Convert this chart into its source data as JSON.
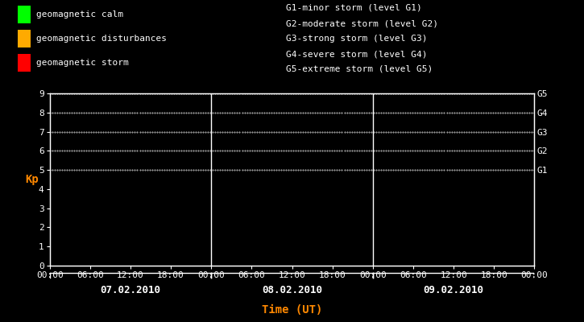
{
  "bg_color": "#000000",
  "plot_bg_color": "#000000",
  "axis_color": "#ffffff",
  "grid_color": "#ffffff",
  "ylabel": "Kp",
  "ylabel_color": "#ff8800",
  "xlabel": "Time (UT)",
  "xlabel_color": "#ff8800",
  "ylim": [
    0,
    9
  ],
  "yticks": [
    0,
    1,
    2,
    3,
    4,
    5,
    6,
    7,
    8,
    9
  ],
  "days": [
    "07.02.2010",
    "08.02.2010",
    "09.02.2010"
  ],
  "time_ticks_labels": [
    "00:00",
    "06:00",
    "12:00",
    "18:00",
    "00:00",
    "06:00",
    "12:00",
    "18:00",
    "00:00",
    "06:00",
    "12:00",
    "18:00",
    "00:00"
  ],
  "g_levels": [
    5,
    6,
    7,
    8,
    9
  ],
  "g_labels": [
    "G1",
    "G2",
    "G3",
    "G4",
    "G5"
  ],
  "legend_items": [
    {
      "label": "geomagnetic calm",
      "color": "#00ff00"
    },
    {
      "label": "geomagnetic disturbances",
      "color": "#ffaa00"
    },
    {
      "label": "geomagnetic storm",
      "color": "#ff0000"
    }
  ],
  "right_legend": [
    "G1-minor storm (level G1)",
    "G2-moderate storm (level G2)",
    "G3-strong storm (level G3)",
    "G4-severe storm (level G4)",
    "G5-extreme storm (level G5)"
  ],
  "font_family": "monospace",
  "font_size": 8,
  "tick_font_size": 8,
  "legend_font_size": 8
}
